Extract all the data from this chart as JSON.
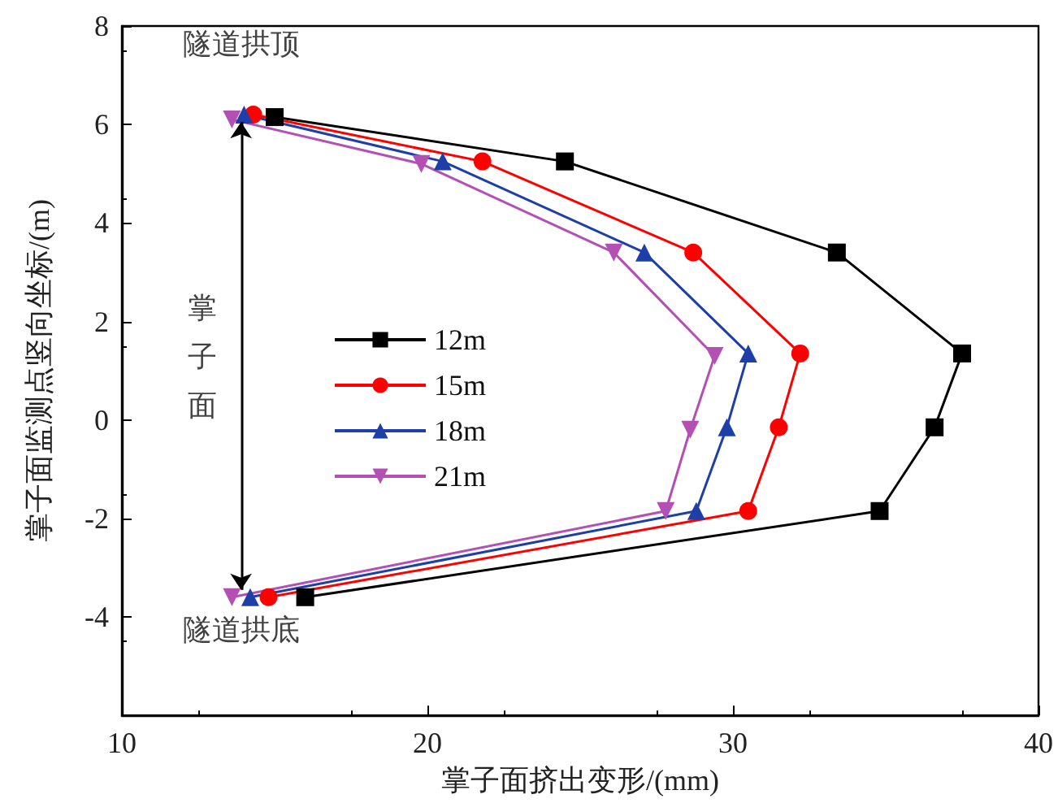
{
  "chart_data": {
    "type": "line",
    "xlabel": "掌子面挤出变形/(mm)",
    "ylabel": "掌子面监测点竖向坐标/(m)",
    "xlim": [
      10,
      40
    ],
    "xticks": [
      10,
      20,
      30,
      40
    ],
    "ylim": [
      -6,
      8
    ],
    "yticks": [
      -4,
      -2,
      0,
      2,
      4,
      6,
      8
    ],
    "legend": "left",
    "grid": false,
    "series": [
      {
        "name": "12m",
        "color": "#000000",
        "marker": "square",
        "x": [
          15.0,
          24.5,
          33.4,
          37.5,
          36.6,
          34.8,
          16.0
        ],
        "values": [
          6.15,
          5.25,
          3.4,
          1.35,
          -0.15,
          -1.85,
          -3.6
        ]
      },
      {
        "name": "15m",
        "color": "#ff0000",
        "marker": "circle",
        "x": [
          14.3,
          21.8,
          28.7,
          32.2,
          31.5,
          30.5,
          14.8
        ],
        "values": [
          6.2,
          5.25,
          3.4,
          1.35,
          -0.15,
          -1.85,
          -3.6
        ]
      },
      {
        "name": "18m",
        "color": "#1f3fa8",
        "marker": "triangle",
        "x": [
          14.0,
          20.5,
          27.1,
          30.5,
          29.8,
          28.8,
          14.2
        ],
        "values": [
          6.2,
          5.25,
          3.4,
          1.35,
          -0.15,
          -1.85,
          -3.6
        ]
      },
      {
        "name": "21m",
        "color": "#b44fb4",
        "marker": "triangle-down",
        "x": [
          13.6,
          19.8,
          26.1,
          29.4,
          28.6,
          27.8,
          13.6
        ],
        "values": [
          6.1,
          5.2,
          3.4,
          1.3,
          -0.2,
          -1.85,
          -3.6
        ]
      }
    ],
    "annotations": [
      {
        "text": "隧道拱顶",
        "x": 13.9,
        "y": 6.15
      },
      "掌子面",
      {
        "text": "隧道拱底",
        "x": 13.9,
        "y": -3.6
      }
    ]
  }
}
